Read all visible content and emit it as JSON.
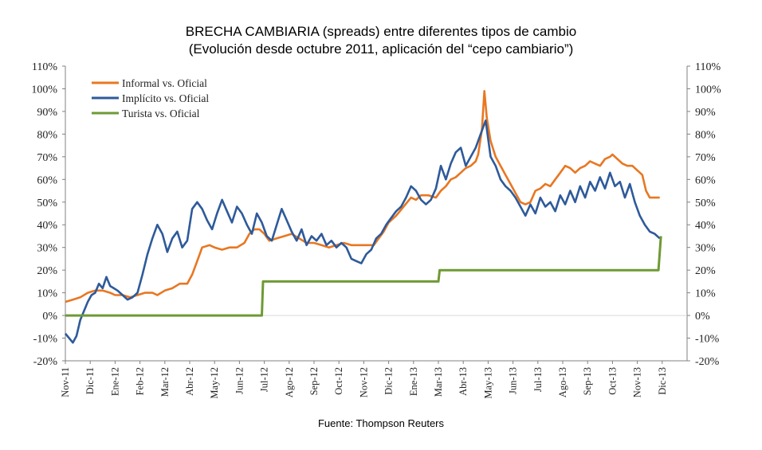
{
  "title_line1": "BRECHA CAMBIARIA (spreads) entre diferentes tipos de cambio",
  "title_line2": "(Evolución desde octubre 2011, aplicación del “cepo cambiario”)",
  "source": "Fuente: Thompson Reuters",
  "colors": {
    "informal": "#E87722",
    "implicito": "#2E5A9A",
    "turista": "#6E9A34",
    "axis": "#808080"
  },
  "chart_data": {
    "type": "line",
    "ylim": [
      -20,
      110
    ],
    "yticks": [
      "-20%",
      "-10%",
      "0%",
      "10%",
      "20%",
      "30%",
      "40%",
      "50%",
      "60%",
      "70%",
      "80%",
      "90%",
      "100%",
      "110%"
    ],
    "xrange": [
      0,
      25
    ],
    "xticks": [
      "Nov-11",
      "Dic-11",
      "Ene-12",
      "Feb-12",
      "Mar-12",
      "Abr-12",
      "May-12",
      "Jun-12",
      "Jul-12",
      "Ago-12",
      "Sep-12",
      "Oct-12",
      "Nov-12",
      "Dic-12",
      "Ene-13",
      "Mar-13",
      "Abr-13",
      "May-13",
      "Jun-13",
      "Jul-13",
      "Ago-13",
      "Sep-13",
      "Oct-13",
      "Nov-13",
      "Dic-13"
    ],
    "legend": {
      "position": "top-left",
      "entries": [
        "Informal vs. Oficial",
        "Implícito vs. Oficial",
        "Turista vs. Oficial"
      ]
    },
    "series": [
      {
        "name": "Informal vs. Oficial",
        "color_key": "informal",
        "points": [
          [
            0,
            6
          ],
          [
            0.3,
            7
          ],
          [
            0.6,
            8
          ],
          [
            0.9,
            10
          ],
          [
            1.2,
            11
          ],
          [
            1.5,
            11
          ],
          [
            1.8,
            10
          ],
          [
            2.0,
            9
          ],
          [
            2.3,
            9
          ],
          [
            2.6,
            8
          ],
          [
            2.9,
            9
          ],
          [
            3.2,
            10
          ],
          [
            3.5,
            10
          ],
          [
            3.7,
            9
          ],
          [
            4.0,
            11
          ],
          [
            4.3,
            12
          ],
          [
            4.6,
            14
          ],
          [
            4.9,
            14
          ],
          [
            5.1,
            18
          ],
          [
            5.3,
            24
          ],
          [
            5.5,
            30
          ],
          [
            5.8,
            31
          ],
          [
            6.0,
            30
          ],
          [
            6.3,
            29
          ],
          [
            6.6,
            30
          ],
          [
            6.9,
            30
          ],
          [
            7.2,
            32
          ],
          [
            7.4,
            36
          ],
          [
            7.6,
            38
          ],
          [
            7.8,
            38
          ],
          [
            8.0,
            36
          ],
          [
            8.2,
            33
          ],
          [
            8.5,
            34
          ],
          [
            8.8,
            35
          ],
          [
            9.1,
            36
          ],
          [
            9.4,
            34
          ],
          [
            9.7,
            32
          ],
          [
            10.0,
            32
          ],
          [
            10.3,
            31
          ],
          [
            10.6,
            30
          ],
          [
            10.9,
            31
          ],
          [
            11.2,
            32
          ],
          [
            11.5,
            31
          ],
          [
            11.8,
            31
          ],
          [
            12.1,
            31
          ],
          [
            12.4,
            31
          ],
          [
            12.6,
            34
          ],
          [
            12.8,
            37
          ],
          [
            13.0,
            41
          ],
          [
            13.3,
            44
          ],
          [
            13.6,
            48
          ],
          [
            13.9,
            52
          ],
          [
            14.1,
            51
          ],
          [
            14.3,
            53
          ],
          [
            14.6,
            53
          ],
          [
            14.9,
            52
          ],
          [
            15.1,
            55
          ],
          [
            15.3,
            57
          ],
          [
            15.5,
            60
          ],
          [
            15.7,
            61
          ],
          [
            15.9,
            63
          ],
          [
            16.1,
            65
          ],
          [
            16.3,
            66
          ],
          [
            16.5,
            68
          ],
          [
            16.6,
            71
          ],
          [
            16.75,
            82
          ],
          [
            16.85,
            99
          ],
          [
            16.95,
            87
          ],
          [
            17.1,
            77
          ],
          [
            17.3,
            70
          ],
          [
            17.5,
            66
          ],
          [
            17.7,
            62
          ],
          [
            17.9,
            58
          ],
          [
            18.1,
            54
          ],
          [
            18.3,
            50
          ],
          [
            18.5,
            49
          ],
          [
            18.7,
            50
          ],
          [
            18.9,
            55
          ],
          [
            19.1,
            56
          ],
          [
            19.3,
            58
          ],
          [
            19.5,
            57
          ],
          [
            19.7,
            60
          ],
          [
            19.9,
            63
          ],
          [
            20.1,
            66
          ],
          [
            20.3,
            65
          ],
          [
            20.5,
            63
          ],
          [
            20.7,
            65
          ],
          [
            20.9,
            66
          ],
          [
            21.1,
            68
          ],
          [
            21.3,
            67
          ],
          [
            21.5,
            66
          ],
          [
            21.7,
            69
          ],
          [
            21.9,
            70
          ],
          [
            22.0,
            71
          ],
          [
            22.2,
            69
          ],
          [
            22.4,
            67
          ],
          [
            22.6,
            66
          ],
          [
            22.8,
            66
          ],
          [
            23.0,
            64
          ],
          [
            23.2,
            62
          ],
          [
            23.35,
            55
          ],
          [
            23.5,
            52
          ],
          [
            23.7,
            52
          ],
          [
            23.9,
            52
          ]
        ]
      },
      {
        "name": "Implícito vs. Oficial",
        "color_key": "implicito",
        "points": [
          [
            0,
            -8
          ],
          [
            0.15,
            -10
          ],
          [
            0.3,
            -12
          ],
          [
            0.45,
            -9
          ],
          [
            0.6,
            -2
          ],
          [
            0.75,
            2
          ],
          [
            0.9,
            6
          ],
          [
            1.05,
            9
          ],
          [
            1.2,
            10
          ],
          [
            1.35,
            14
          ],
          [
            1.5,
            12
          ],
          [
            1.65,
            17
          ],
          [
            1.8,
            13
          ],
          [
            1.95,
            12
          ],
          [
            2.1,
            11
          ],
          [
            2.3,
            9
          ],
          [
            2.5,
            7
          ],
          [
            2.7,
            8
          ],
          [
            2.9,
            10
          ],
          [
            3.1,
            18
          ],
          [
            3.3,
            27
          ],
          [
            3.5,
            34
          ],
          [
            3.7,
            40
          ],
          [
            3.9,
            36
          ],
          [
            4.1,
            28
          ],
          [
            4.3,
            34
          ],
          [
            4.5,
            37
          ],
          [
            4.7,
            30
          ],
          [
            4.9,
            33
          ],
          [
            5.1,
            47
          ],
          [
            5.3,
            50
          ],
          [
            5.5,
            47
          ],
          [
            5.7,
            42
          ],
          [
            5.9,
            38
          ],
          [
            6.1,
            45
          ],
          [
            6.3,
            51
          ],
          [
            6.5,
            46
          ],
          [
            6.7,
            41
          ],
          [
            6.9,
            48
          ],
          [
            7.1,
            45
          ],
          [
            7.3,
            40
          ],
          [
            7.5,
            36
          ],
          [
            7.7,
            45
          ],
          [
            7.9,
            41
          ],
          [
            8.1,
            35
          ],
          [
            8.3,
            33
          ],
          [
            8.5,
            40
          ],
          [
            8.7,
            47
          ],
          [
            8.9,
            42
          ],
          [
            9.1,
            37
          ],
          [
            9.3,
            33
          ],
          [
            9.5,
            38
          ],
          [
            9.7,
            31
          ],
          [
            9.9,
            35
          ],
          [
            10.1,
            33
          ],
          [
            10.3,
            36
          ],
          [
            10.5,
            31
          ],
          [
            10.7,
            33
          ],
          [
            10.9,
            30
          ],
          [
            11.1,
            32
          ],
          [
            11.3,
            30
          ],
          [
            11.5,
            25
          ],
          [
            11.7,
            24
          ],
          [
            11.9,
            23
          ],
          [
            12.1,
            27
          ],
          [
            12.3,
            29
          ],
          [
            12.5,
            34
          ],
          [
            12.7,
            36
          ],
          [
            12.9,
            40
          ],
          [
            13.1,
            43
          ],
          [
            13.3,
            46
          ],
          [
            13.5,
            48
          ],
          [
            13.7,
            52
          ],
          [
            13.9,
            57
          ],
          [
            14.1,
            55
          ],
          [
            14.3,
            51
          ],
          [
            14.5,
            49
          ],
          [
            14.7,
            51
          ],
          [
            14.9,
            56
          ],
          [
            15.1,
            66
          ],
          [
            15.3,
            60
          ],
          [
            15.5,
            67
          ],
          [
            15.7,
            72
          ],
          [
            15.9,
            74
          ],
          [
            16.1,
            66
          ],
          [
            16.3,
            70
          ],
          [
            16.5,
            74
          ],
          [
            16.7,
            80
          ],
          [
            16.9,
            86
          ],
          [
            17.1,
            70
          ],
          [
            17.3,
            66
          ],
          [
            17.5,
            60
          ],
          [
            17.7,
            57
          ],
          [
            17.9,
            55
          ],
          [
            18.1,
            52
          ],
          [
            18.3,
            48
          ],
          [
            18.5,
            44
          ],
          [
            18.7,
            49
          ],
          [
            18.9,
            45
          ],
          [
            19.1,
            52
          ],
          [
            19.3,
            48
          ],
          [
            19.5,
            50
          ],
          [
            19.7,
            46
          ],
          [
            19.9,
            53
          ],
          [
            20.1,
            49
          ],
          [
            20.3,
            55
          ],
          [
            20.5,
            50
          ],
          [
            20.7,
            57
          ],
          [
            20.9,
            52
          ],
          [
            21.1,
            59
          ],
          [
            21.3,
            55
          ],
          [
            21.5,
            61
          ],
          [
            21.7,
            56
          ],
          [
            21.9,
            63
          ],
          [
            22.1,
            57
          ],
          [
            22.3,
            59
          ],
          [
            22.5,
            52
          ],
          [
            22.7,
            58
          ],
          [
            22.9,
            50
          ],
          [
            23.1,
            44
          ],
          [
            23.3,
            40
          ],
          [
            23.5,
            37
          ],
          [
            23.7,
            36
          ],
          [
            23.9,
            34
          ]
        ]
      },
      {
        "name": "Turista vs. Oficial",
        "color_key": "turista",
        "points": [
          [
            0,
            0
          ],
          [
            7.9,
            0
          ],
          [
            7.95,
            15
          ],
          [
            15.0,
            15
          ],
          [
            15.05,
            20
          ],
          [
            23.85,
            20
          ],
          [
            23.95,
            35
          ]
        ]
      }
    ]
  }
}
